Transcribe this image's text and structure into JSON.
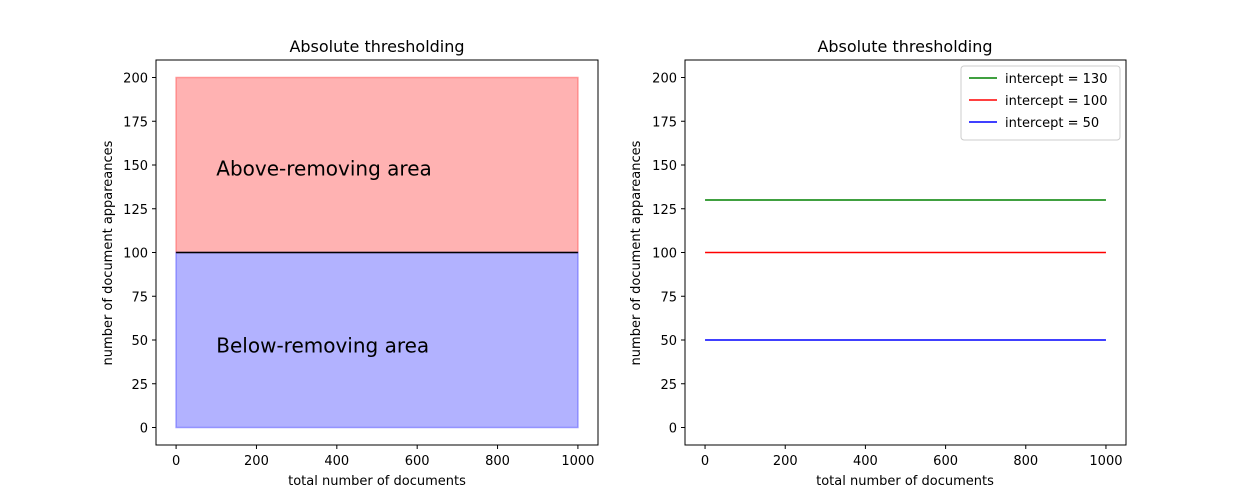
{
  "chart_data": [
    {
      "type": "area",
      "title": "Absolute thresholding",
      "xlabel": "total number of documents",
      "ylabel": "number of document appareances",
      "xlim": [
        -50,
        1050
      ],
      "ylim": [
        -10,
        210
      ],
      "xticks": [
        0,
        200,
        400,
        600,
        800,
        1000
      ],
      "yticks": [
        0,
        25,
        50,
        75,
        100,
        125,
        150,
        175,
        200
      ],
      "grid": false,
      "regions": [
        {
          "name": "Above-removing area",
          "x": [
            0,
            1000
          ],
          "y": [
            100,
            200
          ],
          "color": "#ff6666",
          "label_at": [
            100,
            144
          ]
        },
        {
          "name": "Below-removing area",
          "x": [
            0,
            1000
          ],
          "y": [
            0,
            100
          ],
          "color": "#6666ff",
          "label_at": [
            100,
            43
          ]
        }
      ],
      "lines": [
        {
          "x": [
            0,
            1000
          ],
          "y": [
            100,
            100
          ],
          "color": "#000000"
        }
      ]
    },
    {
      "type": "line",
      "title": "Absolute thresholding",
      "xlabel": "total number of documents",
      "ylabel": "number of document appareances",
      "xlim": [
        -50,
        1050
      ],
      "ylim": [
        -10,
        210
      ],
      "xticks": [
        0,
        200,
        400,
        600,
        800,
        1000
      ],
      "yticks": [
        0,
        25,
        50,
        75,
        100,
        125,
        150,
        175,
        200
      ],
      "grid": false,
      "legend_position": "top-right",
      "series": [
        {
          "name": "intercept = 130",
          "x": [
            0,
            1000
          ],
          "y": [
            130,
            130
          ],
          "color": "#008000"
        },
        {
          "name": "intercept = 100",
          "x": [
            0,
            1000
          ],
          "y": [
            100,
            100
          ],
          "color": "#ff0000"
        },
        {
          "name": "intercept = 50",
          "x": [
            0,
            1000
          ],
          "y": [
            50,
            50
          ],
          "color": "#0000ff"
        }
      ]
    }
  ]
}
